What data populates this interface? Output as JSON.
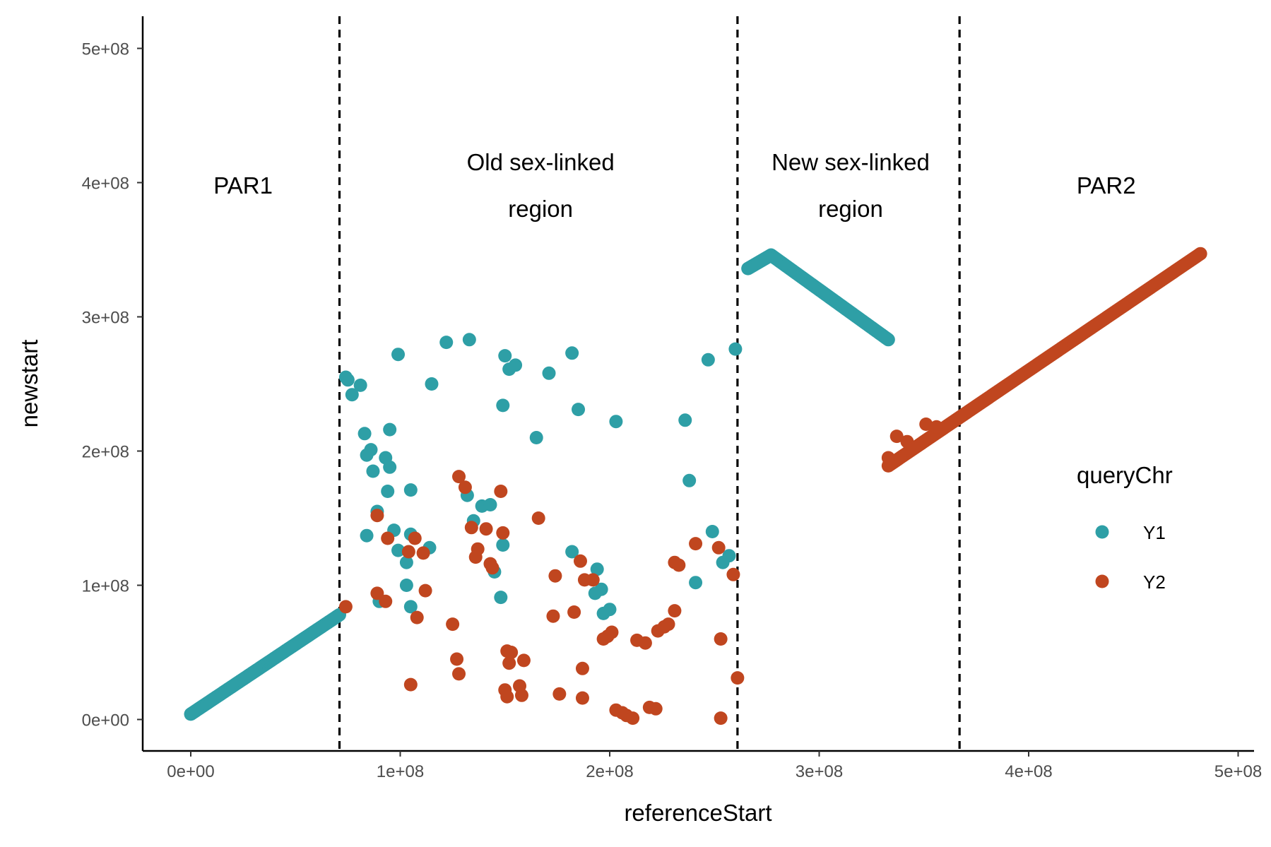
{
  "chart_data": {
    "type": "scatter",
    "title": "",
    "xlabel": "referenceStart",
    "ylabel": "newstart",
    "xlim": [
      -23000000,
      500000000
    ],
    "ylim": [
      -25000000,
      525000000
    ],
    "x_ticks": [
      {
        "value": 0,
        "label": "0e+00"
      },
      {
        "value": 100000000,
        "label": "1e+08"
      },
      {
        "value": 200000000,
        "label": "2e+08"
      },
      {
        "value": 300000000,
        "label": "3e+08"
      },
      {
        "value": 400000000,
        "label": "4e+08"
      },
      {
        "value": 500000000,
        "label": "5e+08"
      }
    ],
    "y_ticks": [
      {
        "value": 0,
        "label": "0e+00"
      },
      {
        "value": 100000000,
        "label": "1e+08"
      },
      {
        "value": 200000000,
        "label": "2e+08"
      },
      {
        "value": 300000000,
        "label": "3e+08"
      },
      {
        "value": 400000000,
        "label": "4e+08"
      },
      {
        "value": 500000000,
        "label": "5e+08"
      }
    ],
    "grid": false,
    "legend": {
      "title": "queryChr",
      "placement": "right"
    },
    "vlines": [
      71000000,
      261000000,
      367000000
    ],
    "region_labels": [
      {
        "lines": [
          "PAR1"
        ],
        "x": 25000000,
        "y": 398000000
      },
      {
        "lines": [
          "Old sex-linked",
          "region"
        ],
        "x": 167000000,
        "y": 398000000
      },
      {
        "lines": [
          "New sex-linked",
          "region"
        ],
        "x": 315000000,
        "y": 398000000
      },
      {
        "lines": [
          "PAR2"
        ],
        "x": 437000000,
        "y": 398000000
      }
    ],
    "series": [
      {
        "name": "Y1",
        "color": "#2E9FA6",
        "segments": [
          {
            "x0": 0,
            "y0": 4000000,
            "x1": 71000000,
            "y1": 78000000,
            "n": 160
          },
          {
            "x0": 266000000,
            "y0": 336000000,
            "x1": 277000000,
            "y1": 346000000,
            "n": 20
          },
          {
            "x0": 277000000,
            "y0": 346000000,
            "x1": 333000000,
            "y1": 283000000,
            "n": 110
          }
        ],
        "points": [
          [
            75000000,
            253000000
          ],
          [
            77000000,
            242000000
          ],
          [
            81000000,
            249000000
          ],
          [
            74000000,
            255000000
          ],
          [
            83000000,
            213000000
          ],
          [
            84000000,
            197000000
          ],
          [
            86000000,
            201000000
          ],
          [
            87000000,
            185000000
          ],
          [
            84000000,
            137000000
          ],
          [
            89000000,
            155000000
          ],
          [
            93000000,
            195000000
          ],
          [
            95000000,
            188000000
          ],
          [
            95000000,
            216000000
          ],
          [
            94000000,
            170000000
          ],
          [
            97000000,
            141000000
          ],
          [
            99000000,
            126000000
          ],
          [
            99000000,
            272000000
          ],
          [
            103000000,
            117000000
          ],
          [
            105000000,
            138000000
          ],
          [
            105000000,
            171000000
          ],
          [
            103000000,
            100000000
          ],
          [
            105000000,
            84000000
          ],
          [
            114000000,
            128000000
          ],
          [
            115000000,
            250000000
          ],
          [
            122000000,
            281000000
          ],
          [
            133000000,
            283000000
          ],
          [
            132000000,
            167000000
          ],
          [
            135000000,
            148000000
          ],
          [
            139000000,
            159000000
          ],
          [
            143000000,
            160000000
          ],
          [
            145000000,
            110000000
          ],
          [
            148000000,
            91000000
          ],
          [
            149000000,
            130000000
          ],
          [
            149000000,
            234000000
          ],
          [
            150000000,
            271000000
          ],
          [
            152000000,
            261000000
          ],
          [
            155000000,
            264000000
          ],
          [
            165000000,
            210000000
          ],
          [
            171000000,
            258000000
          ],
          [
            182000000,
            273000000
          ],
          [
            182000000,
            125000000
          ],
          [
            185000000,
            231000000
          ],
          [
            193000000,
            94000000
          ],
          [
            194000000,
            112000000
          ],
          [
            196000000,
            97000000
          ],
          [
            197000000,
            79000000
          ],
          [
            200000000,
            82000000
          ],
          [
            203000000,
            222000000
          ],
          [
            236000000,
            223000000
          ],
          [
            238000000,
            178000000
          ],
          [
            241000000,
            102000000
          ],
          [
            247000000,
            268000000
          ],
          [
            249000000,
            140000000
          ],
          [
            254000000,
            117000000
          ],
          [
            257000000,
            122000000
          ],
          [
            260000000,
            276000000
          ],
          [
            90000000,
            88000000
          ]
        ]
      },
      {
        "name": "Y2",
        "color": "#C0461F",
        "segments": [
          {
            "x0": 333000000,
            "y0": 189000000,
            "x1": 482000000,
            "y1": 347000000,
            "n": 200
          }
        ],
        "points": [
          [
            74000000,
            84000000
          ],
          [
            89000000,
            94000000
          ],
          [
            89000000,
            152000000
          ],
          [
            93000000,
            88000000
          ],
          [
            94000000,
            135000000
          ],
          [
            104000000,
            125000000
          ],
          [
            107000000,
            135000000
          ],
          [
            108000000,
            76000000
          ],
          [
            111000000,
            124000000
          ],
          [
            112000000,
            96000000
          ],
          [
            105000000,
            26000000
          ],
          [
            125000000,
            71000000
          ],
          [
            127000000,
            45000000
          ],
          [
            128000000,
            34000000
          ],
          [
            128000000,
            181000000
          ],
          [
            131000000,
            173000000
          ],
          [
            134000000,
            143000000
          ],
          [
            136000000,
            121000000
          ],
          [
            137000000,
            127000000
          ],
          [
            141000000,
            142000000
          ],
          [
            143000000,
            116000000
          ],
          [
            144000000,
            113000000
          ],
          [
            148000000,
            170000000
          ],
          [
            149000000,
            139000000
          ],
          [
            151000000,
            51000000
          ],
          [
            152000000,
            42000000
          ],
          [
            153000000,
            50000000
          ],
          [
            150000000,
            22000000
          ],
          [
            151000000,
            17000000
          ],
          [
            157000000,
            25000000
          ],
          [
            158000000,
            18000000
          ],
          [
            159000000,
            44000000
          ],
          [
            166000000,
            150000000
          ],
          [
            173000000,
            77000000
          ],
          [
            174000000,
            107000000
          ],
          [
            176000000,
            19000000
          ],
          [
            183000000,
            80000000
          ],
          [
            186000000,
            118000000
          ],
          [
            188000000,
            104000000
          ],
          [
            187000000,
            38000000
          ],
          [
            187000000,
            16000000
          ],
          [
            192000000,
            104000000
          ],
          [
            197000000,
            60000000
          ],
          [
            199000000,
            62000000
          ],
          [
            201000000,
            65000000
          ],
          [
            203000000,
            7000000
          ],
          [
            206000000,
            5000000
          ],
          [
            208000000,
            3000000
          ],
          [
            211000000,
            1000000
          ],
          [
            213000000,
            59000000
          ],
          [
            217000000,
            57000000
          ],
          [
            219000000,
            9000000
          ],
          [
            222000000,
            8000000
          ],
          [
            223000000,
            66000000
          ],
          [
            226000000,
            69000000
          ],
          [
            228000000,
            71000000
          ],
          [
            231000000,
            81000000
          ],
          [
            231000000,
            117000000
          ],
          [
            233000000,
            115000000
          ],
          [
            241000000,
            131000000
          ],
          [
            252000000,
            128000000
          ],
          [
            253000000,
            60000000
          ],
          [
            253000000,
            1000000
          ],
          [
            259000000,
            108000000
          ],
          [
            261000000,
            31000000
          ],
          [
            337000000,
            211000000
          ],
          [
            342000000,
            207000000
          ],
          [
            345000000,
            202000000
          ],
          [
            351000000,
            220000000
          ],
          [
            356000000,
            218000000
          ],
          [
            333000000,
            195000000
          ]
        ]
      }
    ]
  }
}
